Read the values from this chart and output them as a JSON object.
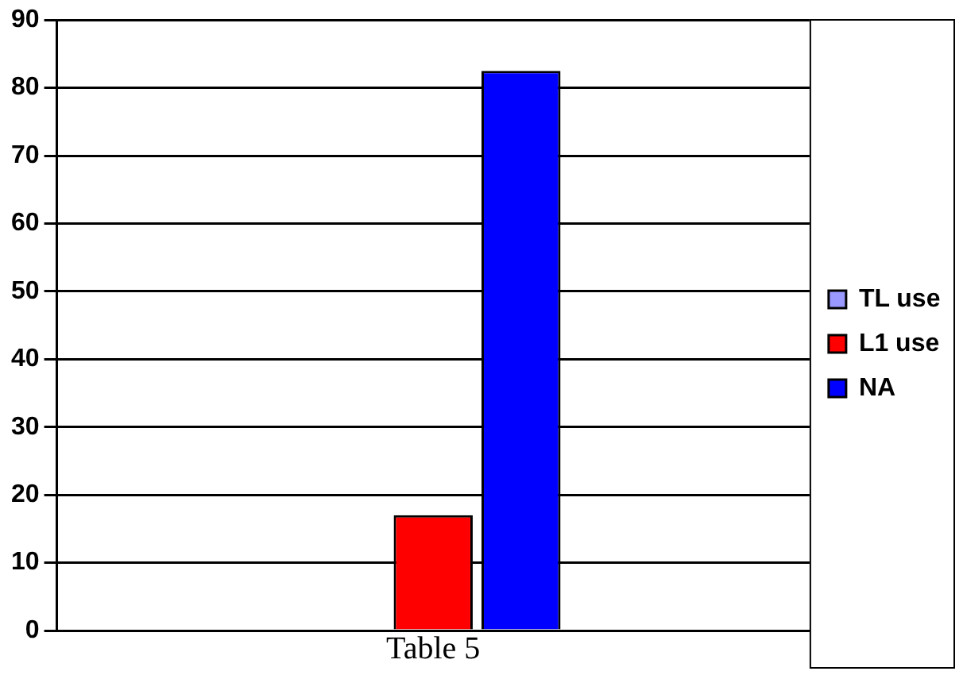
{
  "chart_data": {
    "type": "bar",
    "categories": [
      null
    ],
    "xlabel": "Table 5",
    "series": [
      {
        "name": "TL use",
        "color": "#9999ff",
        "values": [
          0
        ]
      },
      {
        "name": "L1 use",
        "color": "#ff0000",
        "values": [
          17
        ]
      },
      {
        "name": "NA",
        "color": "#0000ff",
        "values": [
          82.5
        ]
      }
    ],
    "ylim": [
      0,
      90
    ],
    "yticks": [
      0,
      10,
      20,
      30,
      40,
      50,
      60,
      70,
      80,
      90
    ],
    "grid": "y",
    "legend": "right"
  }
}
